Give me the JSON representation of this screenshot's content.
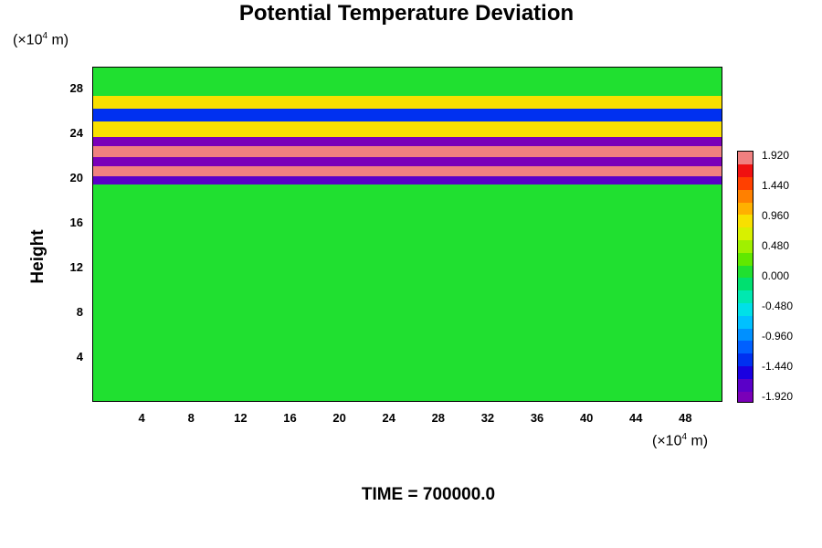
{
  "chart_data": {
    "type": "heatmap",
    "title": "Potential Temperature Deviation",
    "ylabel": "Height",
    "x_unit": "(×10",
    "x_unit_exp": "4",
    "x_unit_tail": " m)",
    "y_unit": "(×10",
    "y_unit_exp": "4",
    "y_unit_tail": " m)",
    "x_ticks": [
      4,
      8,
      12,
      16,
      20,
      24,
      28,
      32,
      36,
      40,
      44,
      48
    ],
    "y_ticks": [
      4,
      8,
      12,
      16,
      20,
      24,
      28
    ],
    "xlim": [
      0,
      51
    ],
    "ylim": [
      0,
      30
    ],
    "colorbar": {
      "range": [
        -1.92,
        1.92
      ],
      "tick_labels": [
        "1.920",
        "1.440",
        "0.960",
        "0.480",
        "0.000",
        "-0.480",
        "-0.960",
        "-1.440",
        "-1.920"
      ],
      "colors": [
        "#7a00b8",
        "#5a00c8",
        "#1a00e0",
        "#0030f0",
        "#0060ff",
        "#0090ff",
        "#00c0ff",
        "#00e0e8",
        "#00e8b0",
        "#00e070",
        "#20e030",
        "#60e800",
        "#a0f000",
        "#d8f000",
        "#f8e000",
        "#ffb000",
        "#ff8000",
        "#ff4000",
        "#f01010",
        "#f08080"
      ]
    },
    "bands": [
      {
        "y_from": 0,
        "y_to": 11,
        "value": 0.0
      },
      {
        "y_from": 11,
        "y_to": 12.6,
        "value": 0.05
      },
      {
        "y_from": 12.6,
        "y_to": 19.5,
        "value": 0.0
      },
      {
        "y_from": 19.5,
        "y_to": 20.3,
        "value": -1.6
      },
      {
        "y_from": 20.3,
        "y_to": 21.2,
        "value": 1.9
      },
      {
        "y_from": 21.2,
        "y_to": 22.0,
        "value": -1.9
      },
      {
        "y_from": 22.0,
        "y_to": 23.0,
        "value": 1.9
      },
      {
        "y_from": 23.0,
        "y_to": 23.8,
        "value": -1.8
      },
      {
        "y_from": 23.8,
        "y_to": 25.2,
        "value": 0.9
      },
      {
        "y_from": 25.2,
        "y_to": 26.3,
        "value": -1.2
      },
      {
        "y_from": 26.3,
        "y_to": 27.5,
        "value": 0.8
      },
      {
        "y_from": 27.5,
        "y_to": 30,
        "value": 0.1
      }
    ]
  },
  "footer": {
    "time_text": "TIME = 700000.0"
  }
}
